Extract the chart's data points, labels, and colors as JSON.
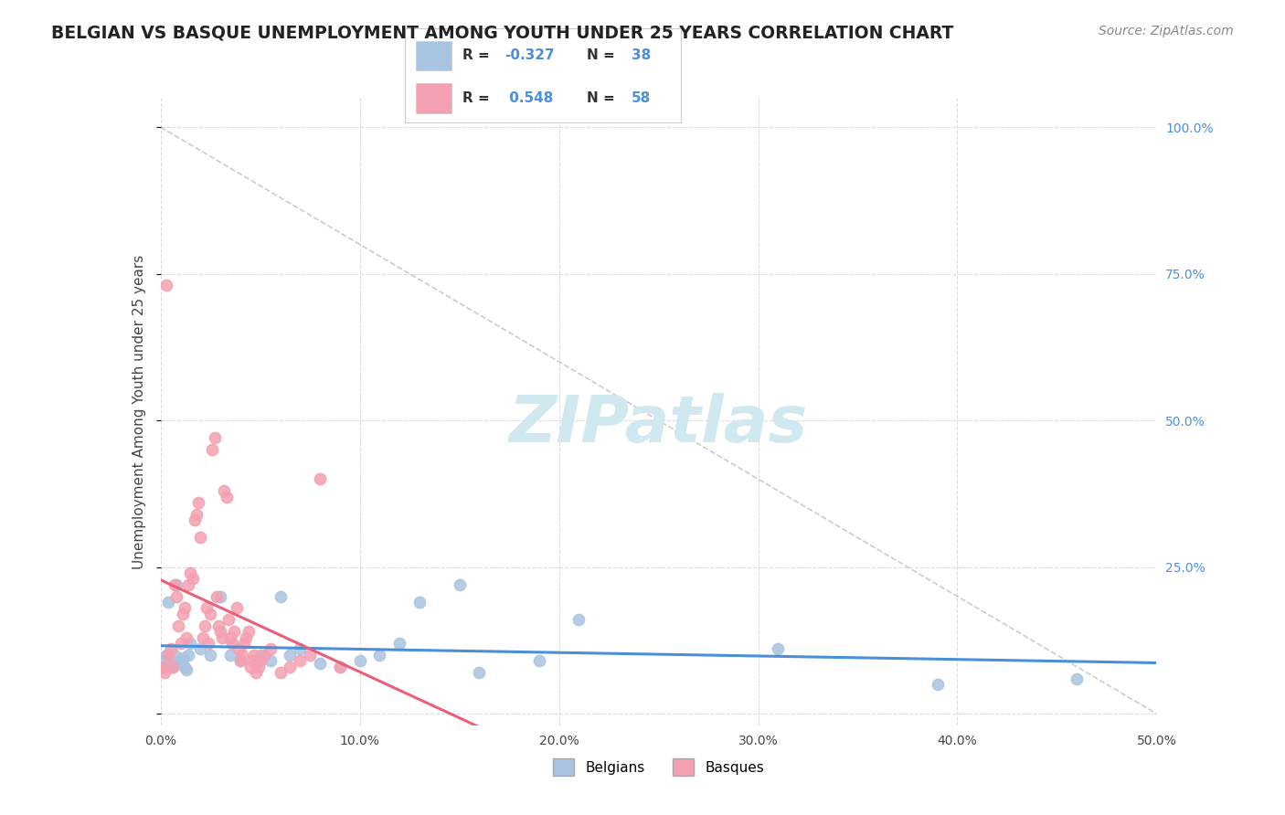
{
  "title": "BELGIAN VS BASQUE UNEMPLOYMENT AMONG YOUTH UNDER 25 YEARS CORRELATION CHART",
  "source": "Source: ZipAtlas.com",
  "ylabel": "Unemployment Among Youth under 25 years",
  "xlim": [
    0.0,
    0.5
  ],
  "ylim": [
    -0.02,
    1.05
  ],
  "belgians_R": -0.327,
  "belgians_N": 38,
  "basques_R": 0.548,
  "basques_N": 58,
  "belgian_color": "#a8c4e0",
  "basque_color": "#f4a0b0",
  "belgian_line_color": "#4a90d9",
  "basque_line_color": "#e8607a",
  "diagonal_color": "#cccccc",
  "background_color": "#ffffff",
  "grid_color": "#dddddd",
  "watermark": "ZIPatlas",
  "watermark_color": "#d0e8f0",
  "title_color": "#222222",
  "source_color": "#888888",
  "right_axis_color": "#4a90d9",
  "belgians_x": [
    0.001,
    0.002,
    0.003,
    0.004,
    0.005,
    0.006,
    0.007,
    0.008,
    0.009,
    0.01,
    0.011,
    0.012,
    0.013,
    0.014,
    0.015,
    0.02,
    0.025,
    0.03,
    0.035,
    0.04,
    0.05,
    0.055,
    0.06,
    0.065,
    0.07,
    0.08,
    0.09,
    0.1,
    0.11,
    0.12,
    0.13,
    0.15,
    0.16,
    0.19,
    0.21,
    0.31,
    0.39,
    0.46
  ],
  "belgians_y": [
    0.09,
    0.08,
    0.1,
    0.19,
    0.09,
    0.08,
    0.1,
    0.22,
    0.085,
    0.09,
    0.095,
    0.08,
    0.075,
    0.1,
    0.12,
    0.11,
    0.1,
    0.2,
    0.1,
    0.09,
    0.1,
    0.09,
    0.2,
    0.1,
    0.11,
    0.085,
    0.08,
    0.09,
    0.1,
    0.12,
    0.19,
    0.22,
    0.07,
    0.09,
    0.16,
    0.11,
    0.05,
    0.06
  ],
  "basques_x": [
    0.001,
    0.002,
    0.003,
    0.004,
    0.005,
    0.006,
    0.007,
    0.008,
    0.009,
    0.01,
    0.011,
    0.012,
    0.013,
    0.014,
    0.015,
    0.016,
    0.017,
    0.018,
    0.019,
    0.02,
    0.021,
    0.022,
    0.023,
    0.024,
    0.025,
    0.026,
    0.027,
    0.028,
    0.029,
    0.03,
    0.031,
    0.032,
    0.033,
    0.034,
    0.035,
    0.036,
    0.037,
    0.038,
    0.039,
    0.04,
    0.041,
    0.042,
    0.043,
    0.044,
    0.045,
    0.046,
    0.047,
    0.048,
    0.049,
    0.05,
    0.052,
    0.055,
    0.06,
    0.065,
    0.07,
    0.075,
    0.08,
    0.09
  ],
  "basques_y": [
    0.08,
    0.07,
    0.73,
    0.1,
    0.11,
    0.08,
    0.22,
    0.2,
    0.15,
    0.12,
    0.17,
    0.18,
    0.13,
    0.22,
    0.24,
    0.23,
    0.33,
    0.34,
    0.36,
    0.3,
    0.13,
    0.15,
    0.18,
    0.12,
    0.17,
    0.45,
    0.47,
    0.2,
    0.15,
    0.14,
    0.13,
    0.38,
    0.37,
    0.16,
    0.13,
    0.12,
    0.14,
    0.18,
    0.11,
    0.09,
    0.1,
    0.12,
    0.13,
    0.14,
    0.08,
    0.09,
    0.1,
    0.07,
    0.08,
    0.09,
    0.1,
    0.11,
    0.07,
    0.08,
    0.09,
    0.1,
    0.4,
    0.08
  ]
}
